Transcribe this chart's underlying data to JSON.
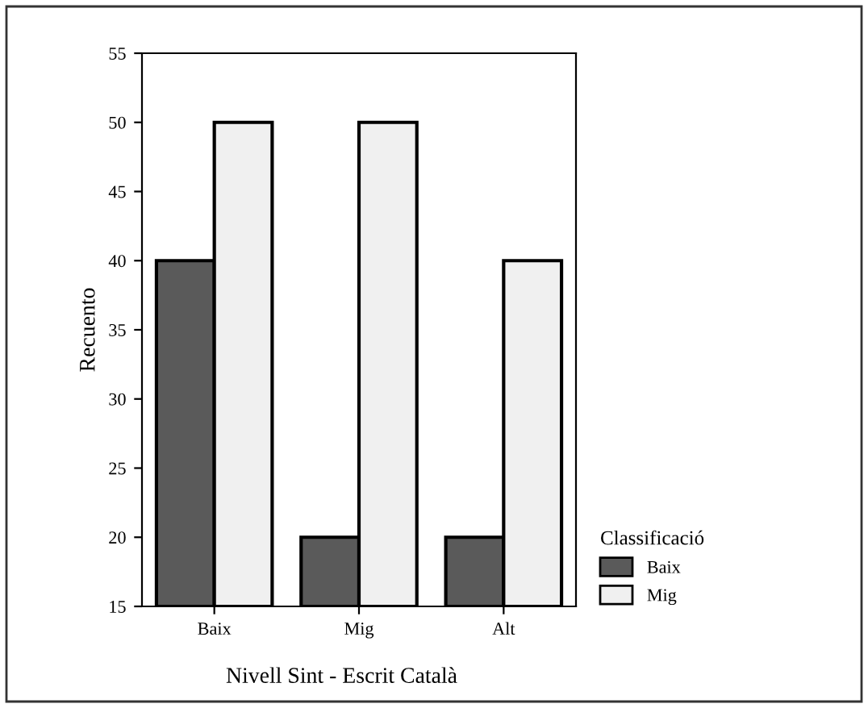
{
  "chart_data": {
    "type": "bar",
    "categories": [
      "Baix",
      "Mig",
      "Alt"
    ],
    "series": [
      {
        "name": "Baix",
        "color": "#5a5a5a",
        "values": [
          40,
          20,
          20
        ]
      },
      {
        "name": "Mig",
        "color": "#f0f0f0",
        "values": [
          50,
          50,
          40
        ]
      }
    ],
    "ylabel": "Recuento",
    "xlabel": "Nivell Sint - Escrit Català",
    "legend_title": "Classificació",
    "legend": "right",
    "ylim": [
      15,
      55
    ],
    "yticks": [
      15,
      20,
      25,
      30,
      35,
      40,
      45,
      50,
      55
    ],
    "grid": false
  }
}
